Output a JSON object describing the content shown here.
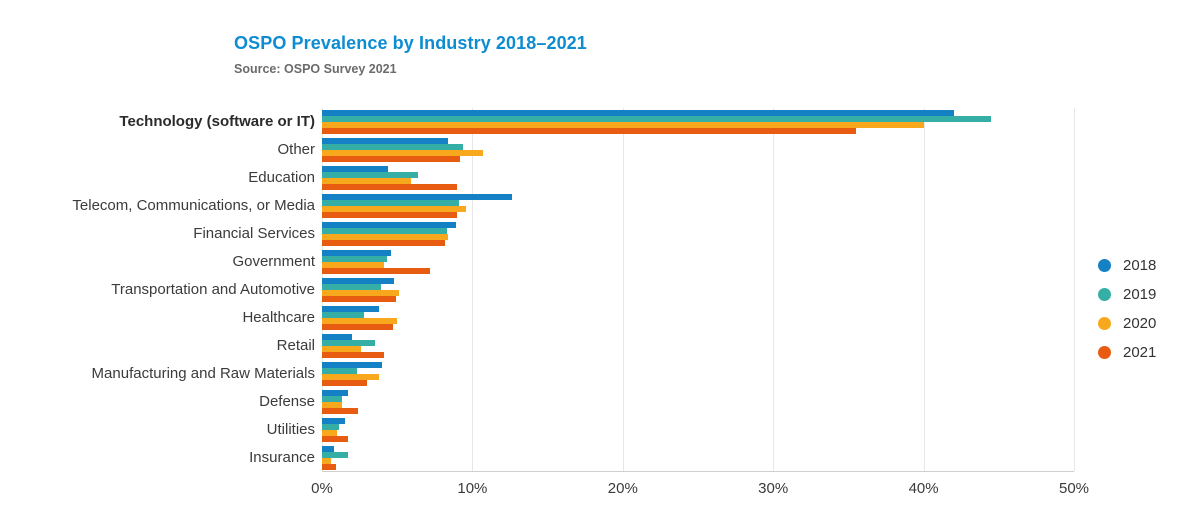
{
  "page": {
    "background": "#ffffff"
  },
  "header": {
    "title": "OSPO Prevalence by Industry 2018–2021",
    "subtitle": "Source: OSPO Survey 2021",
    "title_color": "#0e8cd2",
    "subtitle_color": "#6b6b6b"
  },
  "chart_data": {
    "type": "bar",
    "orientation": "horizontal",
    "title": "OSPO Prevalence by Industry 2018–2021",
    "subtitle": "Source: OSPO Survey 2021",
    "categories": [
      "Technology (software or IT)",
      "Other",
      "Education",
      "Telecom, Communications, or Media",
      "Financial Services",
      "Government",
      "Transportation and Automotive",
      "Healthcare",
      "Retail",
      "Manufacturing and Raw Materials",
      "Defense",
      "Utilities",
      "Insurance"
    ],
    "bold_category": "Technology (software or IT)",
    "series": [
      {
        "name": "2018",
        "color": "#1581c5",
        "values": [
          42.0,
          8.4,
          4.4,
          12.6,
          8.9,
          4.6,
          4.8,
          3.8,
          2.0,
          4.0,
          1.7,
          1.5,
          0.8
        ]
      },
      {
        "name": "2019",
        "color": "#35afa5",
        "values": [
          44.5,
          9.4,
          6.4,
          9.1,
          8.3,
          4.3,
          3.9,
          2.8,
          3.5,
          2.3,
          1.3,
          1.1,
          1.7
        ]
      },
      {
        "name": "2020",
        "color": "#f8a81c",
        "values": [
          40.0,
          10.7,
          5.9,
          9.6,
          8.4,
          4.1,
          5.1,
          5.0,
          2.6,
          3.8,
          1.3,
          1.0,
          0.6
        ]
      },
      {
        "name": "2021",
        "color": "#e75c10",
        "values": [
          35.5,
          9.2,
          9.0,
          9.0,
          8.2,
          7.2,
          4.9,
          4.7,
          4.1,
          3.0,
          2.4,
          1.7,
          0.9
        ]
      }
    ],
    "xlabel": "",
    "ylabel": "",
    "xtick_labels": [
      "0%",
      "10%",
      "20%",
      "30%",
      "40%",
      "50%"
    ],
    "xlim": [
      0,
      50
    ],
    "grid": "vertical",
    "legend_position": "right",
    "axis_color": "#cfcfcf",
    "grid_color": "#e7e7e7"
  }
}
